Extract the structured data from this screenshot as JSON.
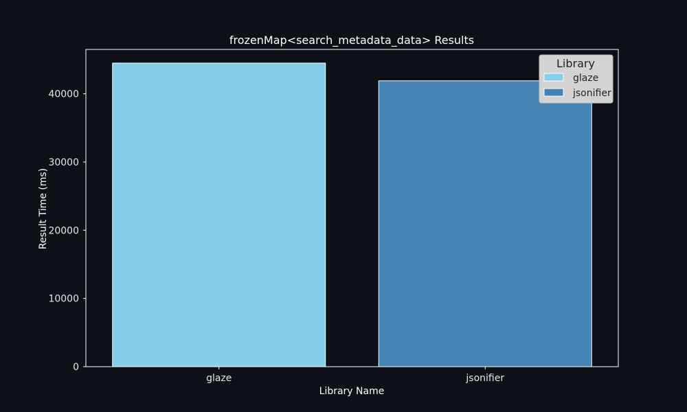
{
  "chart_data": {
    "type": "bar",
    "title": "frozenMap<search_metadata_data> Results",
    "xlabel": "Library Name",
    "ylabel": "Result Time (ms)",
    "categories": [
      "glaze",
      "jsonifier"
    ],
    "values": [
      44500,
      41900
    ],
    "colors": [
      "#87ceeb",
      "#4682b4"
    ],
    "ylim": [
      0,
      46500
    ],
    "yticks": [
      0,
      10000,
      20000,
      30000,
      40000
    ],
    "yticks_labels": [
      "0",
      "10000",
      "20000",
      "30000",
      "40000"
    ],
    "legend": {
      "title": "Library",
      "placement": "top-right",
      "entries": [
        "glaze",
        "jsonifier"
      ]
    },
    "grid": false,
    "background": "#0d1117",
    "frame_color": "#ffffff"
  }
}
